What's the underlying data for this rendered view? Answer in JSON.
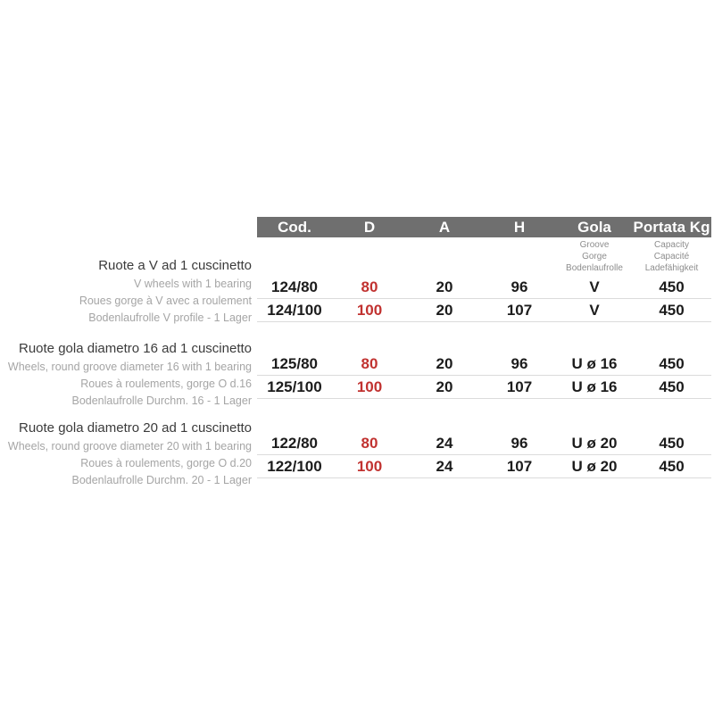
{
  "colors": {
    "header_bg": "#6f6f6f",
    "header_text": "#ffffff",
    "accent_red": "#c13230",
    "row_line": "#dbdbdb",
    "muted_gray": "#a5a5a5"
  },
  "table": {
    "header": {
      "columns": [
        "Cod.",
        "D",
        "A",
        "H",
        "Gola",
        "Portata Kg"
      ]
    },
    "subheaders": {
      "gola": [
        "Groove",
        "Gorge",
        "Bodenlaufrolle"
      ],
      "portata": [
        "Capacity",
        "Capacité",
        "Ladefähigkeit"
      ]
    },
    "groups": [
      {
        "title": "Ruote a V ad 1 cuscinetto",
        "subtitles": [
          "V wheels with 1 bearing",
          "Roues gorge à V avec a roulement",
          "Bodenlaufrolle V profile - 1 Lager"
        ],
        "rows": [
          {
            "cod": "124/80",
            "d": "80",
            "a": "20",
            "h": "96",
            "gola": "V",
            "portata": "450"
          },
          {
            "cod": "124/100",
            "d": "100",
            "a": "20",
            "h": "107",
            "gola": "V",
            "portata": "450"
          }
        ]
      },
      {
        "title": "Ruote gola diametro 16 ad 1 cuscinetto",
        "subtitles": [
          "Wheels, round groove diameter 16 with 1 bearing",
          "Roues à roulements, gorge O d.16",
          "Bodenlaufrolle Durchm. 16 - 1 Lager"
        ],
        "rows": [
          {
            "cod": "125/80",
            "d": "80",
            "a": "20",
            "h": "96",
            "gola": "U ø 16",
            "portata": "450"
          },
          {
            "cod": "125/100",
            "d": "100",
            "a": "20",
            "h": "107",
            "gola": "U ø 16",
            "portata": "450"
          }
        ]
      },
      {
        "title": "Ruote gola diametro 20 ad 1 cuscinetto",
        "subtitles": [
          "Wheels, round groove diameter 20 with 1 bearing",
          "Roues à roulements, gorge O d.20",
          "Bodenlaufrolle Durchm. 20 - 1 Lager"
        ],
        "rows": [
          {
            "cod": "122/80",
            "d": "80",
            "a": "24",
            "h": "96",
            "gola": "U ø 20",
            "portata": "450"
          },
          {
            "cod": "122/100",
            "d": "100",
            "a": "24",
            "h": "107",
            "gola": "U ø 20",
            "portata": "450"
          }
        ]
      }
    ]
  }
}
